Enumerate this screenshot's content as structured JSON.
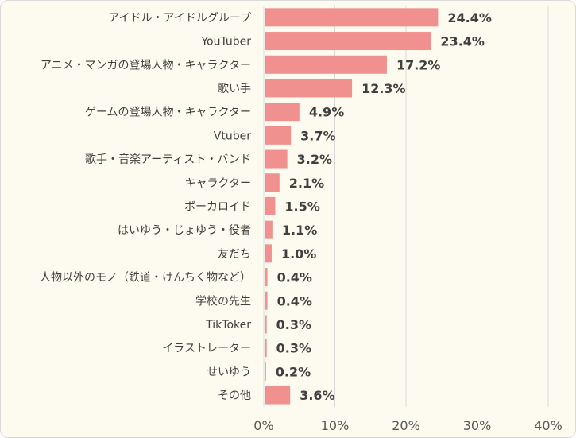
{
  "colors": {
    "bar": "#f0908f",
    "grid": "#d9d9d9",
    "background": "#fdfbef",
    "text": "#404040"
  },
  "chart_data": {
    "type": "bar",
    "orientation": "horizontal",
    "categories": [
      "アイドル・アイドルグループ",
      "YouTuber",
      "アニメ・マンガの登場人物・キャラクター",
      "歌い手",
      "ゲームの登場人物・キャラクター",
      "Vtuber",
      "歌手・音楽アーティスト・バンド",
      "キャラクター",
      "ボーカロイド",
      "はいゆう・じょゆう・役者",
      "友だち",
      "人物以外のモノ（鉄道・けんちく物など）",
      "学校の先生",
      "TikToker",
      "イラストレーター",
      "せいゆう",
      "その他"
    ],
    "values": [
      24.4,
      23.4,
      17.2,
      12.3,
      4.9,
      3.7,
      3.2,
      2.1,
      1.5,
      1.1,
      1.0,
      0.4,
      0.4,
      0.3,
      0.3,
      0.2,
      3.6
    ],
    "value_labels": [
      "24.4%",
      "23.4%",
      "17.2%",
      "12.3%",
      "4.9%",
      "3.7%",
      "3.2%",
      "2.1%",
      "1.5%",
      "1.1%",
      "1.0%",
      "0.4%",
      "0.4%",
      "0.3%",
      "0.3%",
      "0.2%",
      "3.6%"
    ],
    "xticks": [
      0,
      10,
      20,
      30,
      40
    ],
    "xtick_labels": [
      "0%",
      "10%",
      "20%",
      "30%",
      "40%"
    ],
    "xlim": [
      0,
      40
    ],
    "grid": true,
    "legend": "none"
  }
}
